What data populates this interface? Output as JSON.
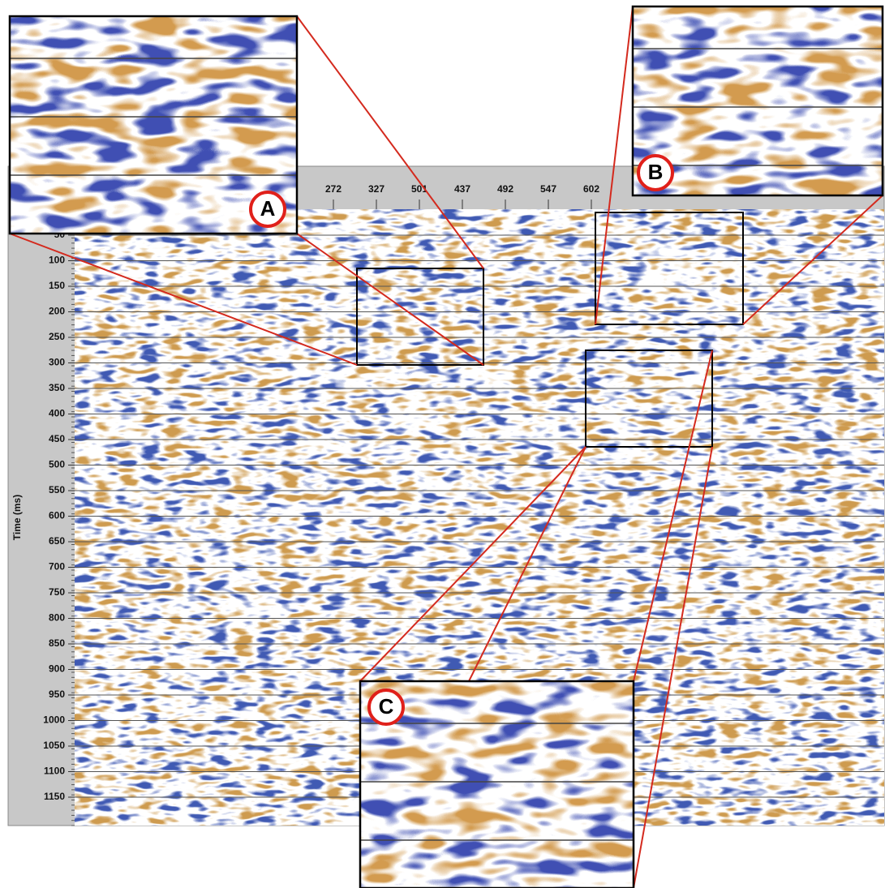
{
  "y_axis": {
    "title": "Time (ms)",
    "ticks": [
      "50",
      "100",
      "150",
      "200",
      "250",
      "300",
      "350",
      "400",
      "450",
      "500",
      "550",
      "600",
      "650",
      "700",
      "750",
      "800",
      "850",
      "900",
      "950",
      "1000",
      "1050",
      "1100",
      "1150"
    ]
  },
  "x_axis": {
    "ticks": [
      "272",
      "327",
      "501",
      "437",
      "492",
      "547",
      "602"
    ]
  },
  "insets": [
    {
      "label": "A"
    },
    {
      "label": "B"
    },
    {
      "label": "C"
    }
  ]
}
